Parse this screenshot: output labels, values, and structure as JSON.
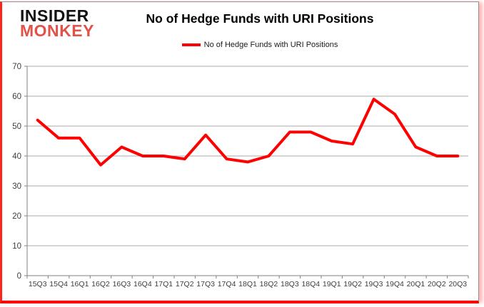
{
  "logo": {
    "line1": "INSIDER",
    "line2": "MONKEY",
    "color1": "#111111",
    "color2": "#e0524a"
  },
  "header": {
    "title": "No of Hedge Funds with URI Positions"
  },
  "legend": {
    "label": "No of Hedge Funds with URI Positions",
    "line_color": "#ff0000"
  },
  "chart_data": {
    "type": "line",
    "title": "No of Hedge Funds with URI Positions",
    "series_name": "No of Hedge Funds with URI Positions",
    "categories": [
      "15Q3",
      "15Q4",
      "16Q1",
      "16Q2",
      "16Q3",
      "16Q4",
      "17Q1",
      "17Q2",
      "17Q3",
      "17Q4",
      "18Q1",
      "18Q2",
      "18Q3",
      "18Q4",
      "19Q1",
      "19Q2",
      "19Q3",
      "19Q4",
      "20Q1",
      "20Q2",
      "20Q3"
    ],
    "values": [
      52,
      46,
      46,
      37,
      43,
      40,
      40,
      39,
      47,
      39,
      38,
      40,
      48,
      48,
      45,
      44,
      59,
      54,
      43,
      40,
      40
    ],
    "xlabel": "",
    "ylabel": "",
    "ylim": [
      0,
      70
    ],
    "yticks": [
      0,
      10,
      20,
      30,
      40,
      50,
      60,
      70
    ],
    "grid": true,
    "legend_position": "top",
    "line_color": "#ff0000",
    "gridline_color": "#aaaaaa",
    "axis_color": "#808080",
    "tick_label_color": "#3d3d3d"
  }
}
